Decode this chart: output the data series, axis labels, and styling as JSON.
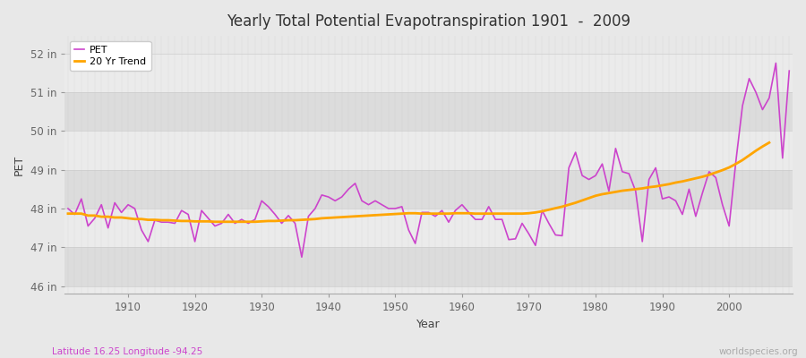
{
  "title": "Yearly Total Potential Evapotranspiration 1901  -  2009",
  "xlabel": "Year",
  "ylabel": "PET",
  "subtitle_left": "Latitude 16.25 Longitude -94.25",
  "subtitle_right": "worldspecies.org",
  "pet_color": "#CC44CC",
  "trend_color": "#FFA500",
  "bg_color": "#E8E8E8",
  "band_color_dark": "#DCDCDC",
  "band_color_light": "#EBEBEB",
  "ylim": [
    45.8,
    52.45
  ],
  "yticks": [
    46,
    47,
    48,
    49,
    50,
    51,
    52
  ],
  "ytick_labels": [
    "46 in",
    "47 in",
    "48 in",
    "49 in",
    "50 in",
    "51 in",
    "52 in"
  ],
  "years": [
    1901,
    1902,
    1903,
    1904,
    1905,
    1906,
    1907,
    1908,
    1909,
    1910,
    1911,
    1912,
    1913,
    1914,
    1915,
    1916,
    1917,
    1918,
    1919,
    1920,
    1921,
    1922,
    1923,
    1924,
    1925,
    1926,
    1927,
    1928,
    1929,
    1930,
    1931,
    1932,
    1933,
    1934,
    1935,
    1936,
    1937,
    1938,
    1939,
    1940,
    1941,
    1942,
    1943,
    1944,
    1945,
    1946,
    1947,
    1948,
    1949,
    1950,
    1951,
    1952,
    1953,
    1954,
    1955,
    1956,
    1957,
    1958,
    1959,
    1960,
    1961,
    1962,
    1963,
    1964,
    1965,
    1966,
    1967,
    1968,
    1969,
    1970,
    1971,
    1972,
    1973,
    1974,
    1975,
    1976,
    1977,
    1978,
    1979,
    1980,
    1981,
    1982,
    1983,
    1984,
    1985,
    1986,
    1987,
    1988,
    1989,
    1990,
    1991,
    1992,
    1993,
    1994,
    1995,
    1996,
    1997,
    1998,
    1999,
    2000,
    2001,
    2002,
    2003,
    2004,
    2005,
    2006,
    2007,
    2008,
    2009
  ],
  "pet_values": [
    48.0,
    47.85,
    48.25,
    47.55,
    47.75,
    48.1,
    47.5,
    48.15,
    47.9,
    48.1,
    48.0,
    47.45,
    47.15,
    47.7,
    47.65,
    47.65,
    47.62,
    47.95,
    47.85,
    47.15,
    47.95,
    47.75,
    47.55,
    47.62,
    47.85,
    47.62,
    47.72,
    47.62,
    47.72,
    48.2,
    48.05,
    47.85,
    47.62,
    47.82,
    47.62,
    46.75,
    47.8,
    48.0,
    48.35,
    48.3,
    48.2,
    48.3,
    48.5,
    48.65,
    48.2,
    48.1,
    48.2,
    48.1,
    48.0,
    48.0,
    48.05,
    47.45,
    47.1,
    47.9,
    47.9,
    47.8,
    47.95,
    47.65,
    47.95,
    48.1,
    47.9,
    47.72,
    47.72,
    48.05,
    47.72,
    47.72,
    47.2,
    47.22,
    47.62,
    47.35,
    47.05,
    47.95,
    47.62,
    47.32,
    47.3,
    49.05,
    49.45,
    48.85,
    48.75,
    48.85,
    49.15,
    48.45,
    49.55,
    48.95,
    48.9,
    48.45,
    47.15,
    48.75,
    49.05,
    48.25,
    48.3,
    48.2,
    47.85,
    48.5,
    47.8,
    48.4,
    48.95,
    48.8,
    48.1,
    47.55,
    49.2,
    50.65,
    51.35,
    51.0,
    50.55,
    50.85,
    51.75,
    49.3,
    51.55
  ],
  "trend_values": [
    47.87,
    47.87,
    47.87,
    47.82,
    47.82,
    47.79,
    47.79,
    47.77,
    47.77,
    47.75,
    47.73,
    47.73,
    47.71,
    47.71,
    47.7,
    47.7,
    47.69,
    47.68,
    47.68,
    47.67,
    47.67,
    47.67,
    47.66,
    47.66,
    47.66,
    47.66,
    47.66,
    47.66,
    47.66,
    47.67,
    47.68,
    47.68,
    47.69,
    47.7,
    47.7,
    47.71,
    47.72,
    47.73,
    47.75,
    47.76,
    47.77,
    47.78,
    47.79,
    47.8,
    47.81,
    47.82,
    47.83,
    47.84,
    47.85,
    47.86,
    47.87,
    47.88,
    47.88,
    47.87,
    47.87,
    47.87,
    47.87,
    47.87,
    47.88,
    47.88,
    47.88,
    47.87,
    47.87,
    47.87,
    47.87,
    47.87,
    47.87,
    47.87,
    47.87,
    47.88,
    47.9,
    47.93,
    47.97,
    48.01,
    48.05,
    48.1,
    48.15,
    48.21,
    48.27,
    48.33,
    48.37,
    48.4,
    48.43,
    48.46,
    48.48,
    48.5,
    48.52,
    48.55,
    48.57,
    48.6,
    48.63,
    48.67,
    48.7,
    48.74,
    48.78,
    48.82,
    48.87,
    48.93,
    48.99,
    49.06,
    49.15,
    49.25,
    49.37,
    49.49,
    49.6,
    49.7,
    null,
    null,
    null
  ]
}
